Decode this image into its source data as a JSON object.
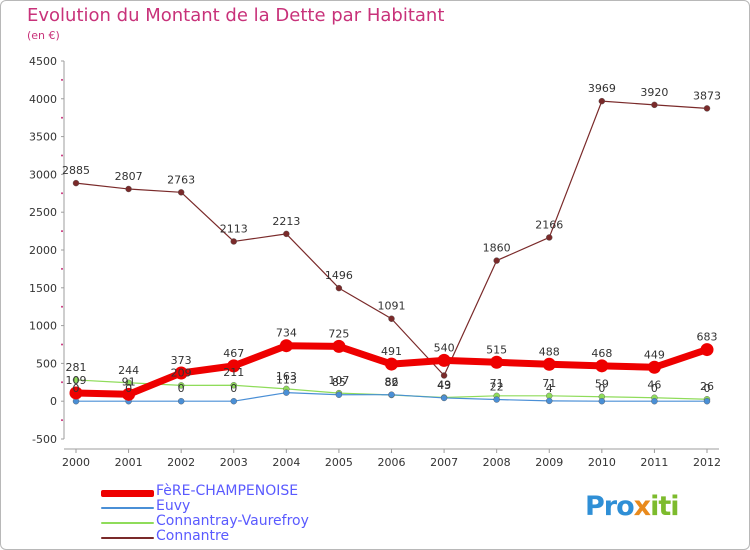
{
  "title": "Evolution du Montant de la Dette par Habitant",
  "subtitle": "(en €)",
  "logo": {
    "p1": "Pro",
    "p2": "x",
    "p3": "iti"
  },
  "chart_data": {
    "type": "line",
    "title": "Evolution du Montant de la Dette par Habitant",
    "ylabel": "(en €)",
    "ylim": [
      -500,
      4500
    ],
    "yticks": [
      4500,
      4000,
      3500,
      3000,
      2500,
      2000,
      1500,
      1000,
      500,
      0,
      -500
    ],
    "x": [
      "2000",
      "2001",
      "2002",
      "2003",
      "2004",
      "2005",
      "2006",
      "2007",
      "2008",
      "2009",
      "2010",
      "2011",
      "2012"
    ],
    "grid": false,
    "legend_position": "bottom-left",
    "series": [
      {
        "name": "FèRE-CHAMPENOISE",
        "color": "#ee0000",
        "values": [
          109,
          91,
          373,
          467,
          734,
          725,
          491,
          540,
          515,
          488,
          468,
          449,
          683
        ],
        "labels": [
          "109",
          "91",
          "373",
          "467",
          "734",
          "725",
          "491",
          "540",
          "515",
          "488",
          "468",
          "449",
          "683"
        ]
      },
      {
        "name": "Euvy",
        "color": "#4a8fd6",
        "values": [
          0,
          0,
          0,
          0,
          113,
          85,
          86,
          43,
          22,
          4,
          0,
          0,
          0
        ],
        "labels": [
          "0",
          "0",
          "0",
          "0",
          "113",
          "85",
          "86",
          "43",
          "22",
          "4",
          "0",
          "0",
          "0"
        ]
      },
      {
        "name": "Connantray-Vaurefroy",
        "color": "#8fdc5a",
        "values": [
          281,
          244,
          209,
          211,
          163,
          107,
          82,
          49,
          71,
          71,
          59,
          46,
          26
        ],
        "labels": [
          "281",
          "244",
          "209",
          "211",
          "163",
          "107",
          "82",
          "49",
          "71",
          "71",
          "59",
          "46",
          "26"
        ]
      },
      {
        "name": "Connantre",
        "color": "#7a2a2a",
        "values": [
          2885,
          2807,
          2763,
          2113,
          2213,
          1496,
          1091,
          340,
          1860,
          2166,
          3969,
          3920,
          3873
        ],
        "labels": [
          "2885",
          "2807",
          "2763",
          "2113",
          "2213",
          "1496",
          "1091",
          "",
          "1860",
          "2166",
          "3969",
          "3920",
          "3873"
        ]
      }
    ]
  }
}
